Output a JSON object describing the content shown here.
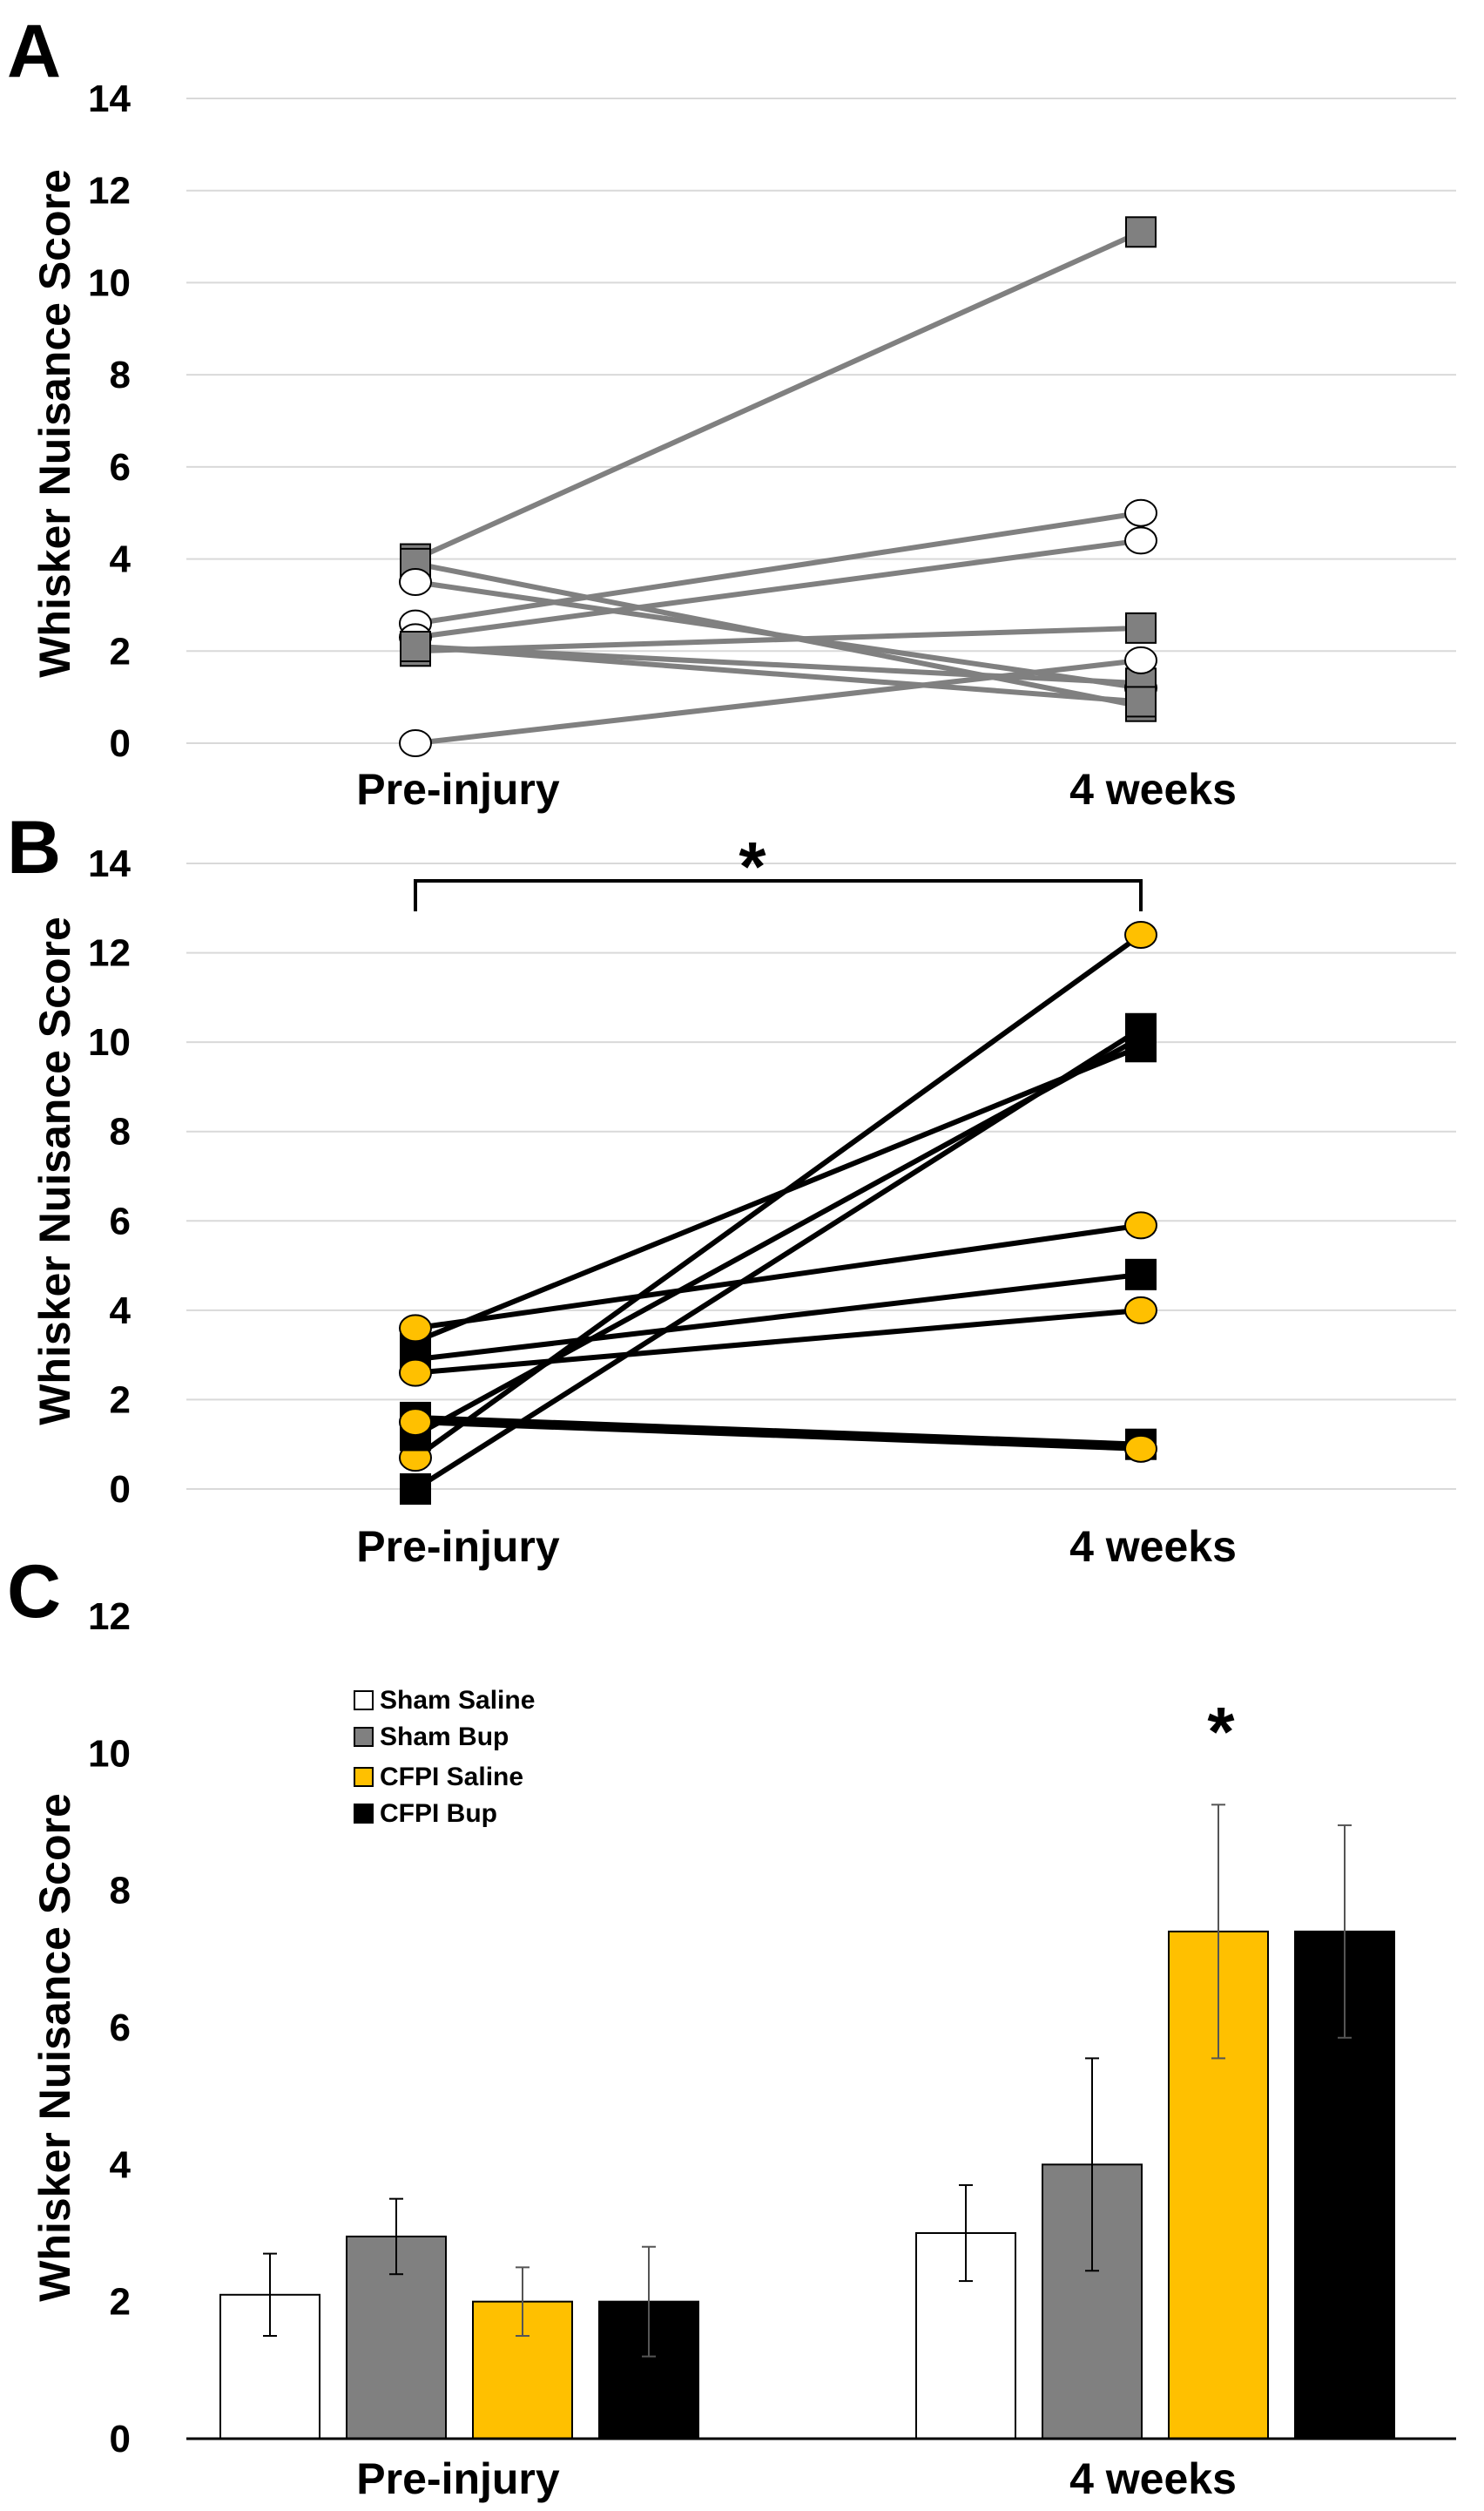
{
  "colors": {
    "sham_saline": "#ffffff",
    "sham_bup": "#808080",
    "cfpi_saline": "#ffc000",
    "cfpi_bup": "#000000",
    "line_A": "#808080",
    "line_B": "#000000",
    "grid": "#d9d9d9"
  },
  "chart_data": [
    {
      "panel": "A",
      "type": "line",
      "title": "",
      "ylabel": "Whisker Nuisance Score",
      "categories": [
        "Pre-injury",
        "4 weeks"
      ],
      "ylim": [
        0,
        14
      ],
      "yticks": [
        0,
        2,
        4,
        6,
        8,
        10,
        12,
        14
      ],
      "grid": true,
      "series": [
        {
          "name": "Sham Bup",
          "marker": "square",
          "values": [
            4.0,
            11.1
          ]
        },
        {
          "name": "Sham Saline",
          "marker": "circle",
          "values": [
            2.6,
            5.0
          ]
        },
        {
          "name": "Sham Saline",
          "marker": "circle",
          "values": [
            2.3,
            4.4
          ]
        },
        {
          "name": "Sham Bup",
          "marker": "square",
          "values": [
            2.0,
            2.5
          ]
        },
        {
          "name": "Sham Bup",
          "marker": "square",
          "values": [
            3.9,
            0.8
          ]
        },
        {
          "name": "Sham Saline",
          "marker": "circle",
          "values": [
            3.5,
            1.2
          ]
        },
        {
          "name": "Sham Bup",
          "marker": "square",
          "values": [
            2.1,
            1.3
          ]
        },
        {
          "name": "Sham Bup",
          "marker": "square",
          "values": [
            2.1,
            0.9
          ]
        },
        {
          "name": "Sham Saline",
          "marker": "circle",
          "values": [
            0.0,
            1.8
          ]
        }
      ]
    },
    {
      "panel": "B",
      "type": "line",
      "title": "",
      "ylabel": "Whisker Nuisance Score",
      "categories": [
        "Pre-injury",
        "4 weeks"
      ],
      "ylim": [
        0,
        14
      ],
      "yticks": [
        0,
        2,
        4,
        6,
        8,
        10,
        12,
        14
      ],
      "grid": true,
      "annotation": "*",
      "series": [
        {
          "name": "CFPI Saline",
          "marker": "circle",
          "values": [
            0.7,
            12.4
          ]
        },
        {
          "name": "CFPI Bup",
          "marker": "square",
          "values": [
            0.0,
            10.3
          ]
        },
        {
          "name": "CFPI Bup",
          "marker": "square",
          "values": [
            1.2,
            10.1
          ]
        },
        {
          "name": "CFPI Bup",
          "marker": "square",
          "values": [
            3.3,
            9.9
          ]
        },
        {
          "name": "CFPI Saline",
          "marker": "circle",
          "values": [
            3.6,
            5.9
          ]
        },
        {
          "name": "CFPI Bup",
          "marker": "square",
          "values": [
            2.9,
            4.8
          ]
        },
        {
          "name": "CFPI Saline",
          "marker": "circle",
          "values": [
            2.6,
            4.0
          ]
        },
        {
          "name": "CFPI Bup",
          "marker": "square",
          "values": [
            1.6,
            1.0
          ]
        },
        {
          "name": "CFPI Saline",
          "marker": "circle",
          "values": [
            1.5,
            0.9
          ]
        }
      ]
    },
    {
      "panel": "C",
      "type": "bar",
      "title": "",
      "ylabel": "Whisker Nuisance Score",
      "categories": [
        "Pre-injury",
        "4 weeks"
      ],
      "ylim": [
        0,
        12
      ],
      "yticks": [
        0,
        2,
        4,
        6,
        8,
        10,
        12
      ],
      "grid": false,
      "legend_position": "top-left",
      "annotation": "*",
      "series": [
        {
          "name": "Sham Saline",
          "values": [
            2.1,
            3.0
          ],
          "errors": [
            0.6,
            0.7
          ]
        },
        {
          "name": "Sham Bup",
          "values": [
            2.95,
            4.0
          ],
          "errors": [
            0.55,
            1.55
          ]
        },
        {
          "name": "CFPI Saline",
          "values": [
            2.0,
            7.4
          ],
          "errors": [
            0.5,
            1.85
          ]
        },
        {
          "name": "CFPI Bup",
          "values": [
            2.0,
            7.4
          ],
          "errors": [
            0.8,
            1.55
          ]
        }
      ]
    }
  ]
}
